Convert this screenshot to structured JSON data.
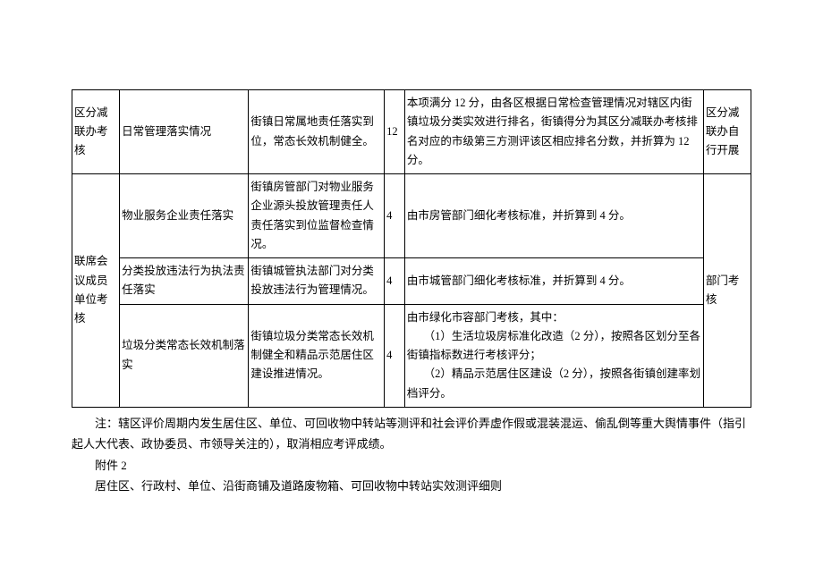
{
  "table": {
    "rows": [
      {
        "c1": "区分减联办考核",
        "c2": "日常管理落实情况",
        "c3": "街镇日常属地责任落实到位，常态长效机制健全。",
        "c4": "12",
        "c5": "本项满分 12 分，由各区根据日常检查管理情况对辖区内街镇垃圾分类实效进行排名，街镇得分为其区分减联办考核排名对应的市级第三方测评该区相应排名分数，并折算为 12 分。",
        "c6": "区分减联办自行开展"
      },
      {
        "c1": "联席会议成员单位考核",
        "c2": "物业服务企业责任落实",
        "c3": "街镇房管部门对物业服务企业源头投放管理责任人责任落实到位监督检查情况。",
        "c4": "4",
        "c5": "由市房管部门细化考核标准，并折算到 4 分。",
        "c6": "部门考核"
      },
      {
        "c2": "分类投放违法行为执法责任落实",
        "c3": "街镇城管执法部门对分类投放违法行为管理情况。",
        "c4": "4",
        "c5": "由市城管部门细化考核标准，并折算到 4 分。"
      },
      {
        "c2": "垃圾分类常态长效机制落实",
        "c3": "街镇垃圾分类常态长效机制健全和精品示范居住区建设推进情况。",
        "c4": "4",
        "c5": "由市绿化市容部门考核，其中：\n　　（1）生活垃圾房标准化改造（2 分），按照各区划分至各街镇指标数进行考核评分；\n　　（2）精品示范居住区建设（2 分），按照各街镇创建率划档评分。"
      }
    ]
  },
  "notes": {
    "line1": "　　注：辖区评价周期内发生居住区、单位、可回收物中转站等测评和社会评价弄虚作假或混装混运、偷乱倒等重大舆情事件（指引起人大代表、政协委员、市领导关注的），取消相应考评成绩。",
    "line2": "　　附件 2",
    "line3": "　　居住区、行政村、单位、沿街商铺及道路废物箱、可回收物中转站实效测评细则"
  }
}
